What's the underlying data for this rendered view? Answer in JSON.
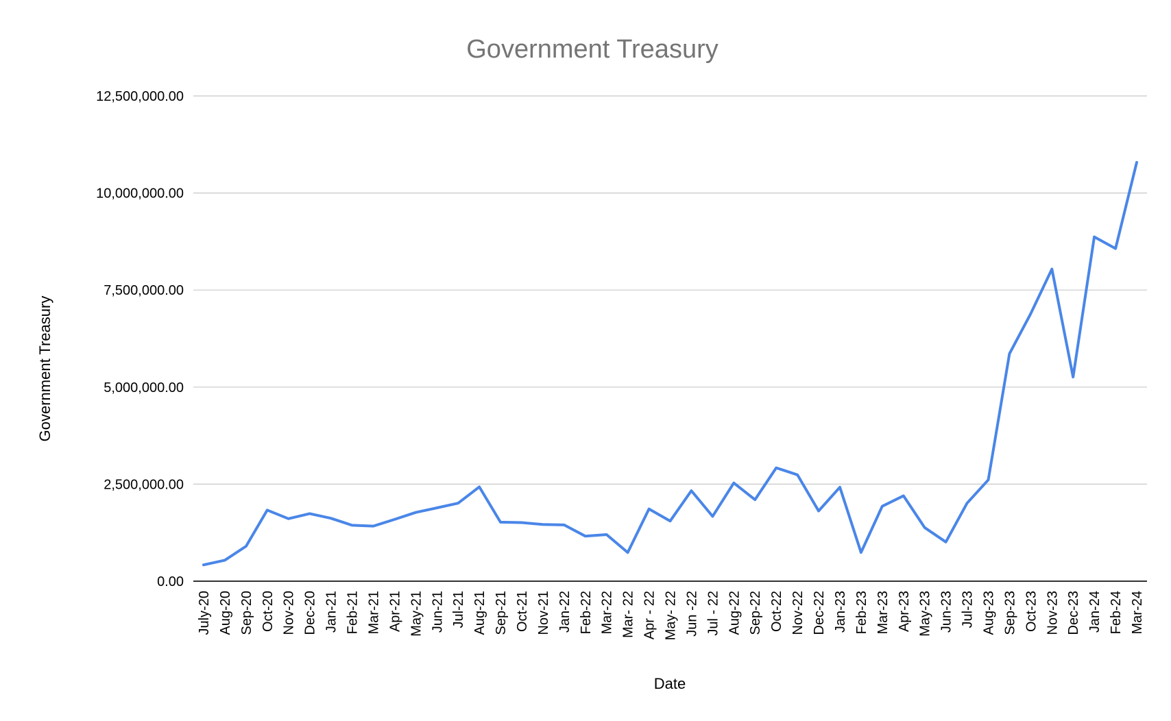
{
  "chart_data": {
    "type": "line",
    "title": "Government Treasury",
    "xlabel": "Date",
    "ylabel": "Government Treasury",
    "ylim": [
      0,
      12500000
    ],
    "yticks": [
      0,
      2500000,
      5000000,
      7500000,
      10000000,
      12500000
    ],
    "ytick_labels": [
      "0.00",
      "2,500,000.00",
      "5,000,000.00",
      "7,500,000.00",
      "10,000,000.00",
      "12,500,000.00"
    ],
    "grid": true,
    "legend": "none",
    "series_color": "#4a86e8",
    "categories": [
      "July-20",
      "Aug-20",
      "Sep-20",
      "Oct-20",
      "Nov-20",
      "Dec-20",
      "Jan-21",
      "Feb-21",
      "Mar-21",
      "Apr-21",
      "May-21",
      "Jun-21",
      "Jul-21",
      "Aug-21",
      "Sep-21",
      "Oct-21",
      "Nov-21",
      "Jan-22",
      "Feb-22",
      "Mar-22",
      "Mar- 22",
      "Apr - 22",
      "May- 22",
      "Jun -22",
      "Jul - 22",
      "Aug-22",
      "Sep-22",
      "Oct-22",
      "Nov-22",
      "Dec-22",
      "Jan-23",
      "Feb-23",
      "Mar-23",
      "Apr-23",
      "May-23",
      "Jun-23",
      "Jul-23",
      "Aug-23",
      "Sep-23",
      "Oct-23",
      "Nov-23",
      "Dec-23",
      "Jan-24",
      "Feb-24",
      "Mar-24"
    ],
    "series": [
      {
        "values": [
          420000,
          540000,
          900000,
          1830000,
          1610000,
          1740000,
          1620000,
          1440000,
          1420000,
          1590000,
          1770000,
          1890000,
          2010000,
          2430000,
          1520000,
          1510000,
          1460000,
          1450000,
          1160000,
          1200000,
          740000,
          1860000,
          1550000,
          2330000,
          1670000,
          2530000,
          2100000,
          2920000,
          2740000,
          1810000,
          2420000,
          740000,
          1930000,
          2200000,
          1380000,
          1010000,
          2010000,
          2610000,
          5860000,
          6890000,
          8040000,
          5260000,
          8870000,
          8570000,
          10790000
        ]
      }
    ]
  }
}
